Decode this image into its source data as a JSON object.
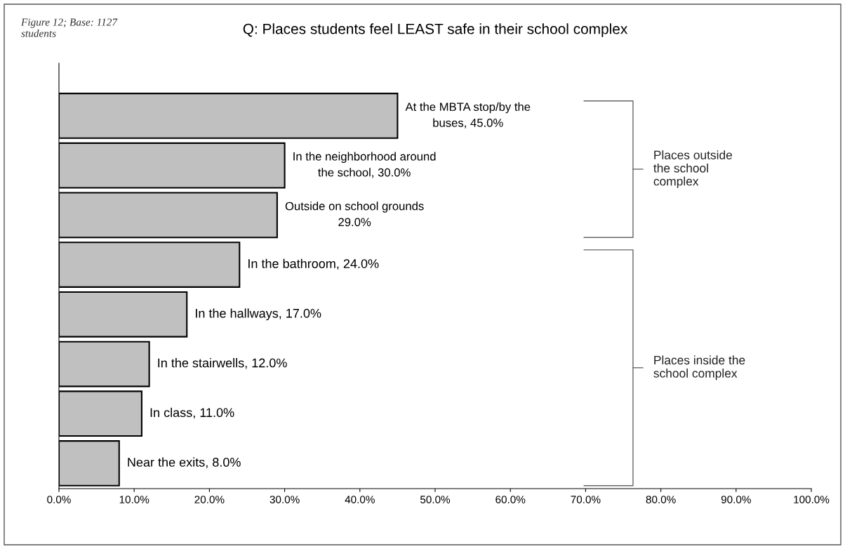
{
  "chart_data": {
    "type": "bar",
    "orientation": "horizontal",
    "title": "Q: Places students feel LEAST safe in their school complex",
    "categories": [
      null,
      null,
      null,
      null,
      null,
      null,
      null,
      null
    ],
    "values": [
      45.0,
      30.0,
      29.0,
      24.0,
      17.0,
      12.0,
      11.0,
      8.0
    ],
    "value_labels": [
      "At the MBTA stop/by the\nbuses, 45.0%",
      "In the neighborhood around\nthe school, 30.0%",
      "Outside on school grounds\n29.0%",
      "In the bathroom, 24.0%",
      "In the hallways, 17.0%",
      "In the stairwells, 12.0%",
      "In class, 11.0%",
      "Near the exits, 8.0%"
    ],
    "color": "#c0c0c0",
    "xlim": [
      0,
      100
    ],
    "xticks": [
      {
        "value": 0,
        "label": "0.0%"
      },
      {
        "value": 10,
        "label": "10.0%"
      },
      {
        "value": 20,
        "label": "20.0%"
      },
      {
        "value": 30,
        "label": "30.0%"
      },
      {
        "value": 40,
        "label": "40.0%"
      },
      {
        "value": 50,
        "label": "50.0%"
      },
      {
        "value": 60,
        "label": "60.0%"
      },
      {
        "value": 70,
        "label": "70.0%"
      },
      {
        "value": 80,
        "label": "80.0%"
      },
      {
        "value": 90,
        "label": "90.0%"
      },
      {
        "value": 100,
        "label": "100.0%"
      }
    ],
    "grid": false,
    "legend": false,
    "annotations": [
      "Figure 12; Base: 1127\nstudents",
      "Places outside\nthe school\ncomplex",
      "Places inside the\nschool complex"
    ]
  }
}
